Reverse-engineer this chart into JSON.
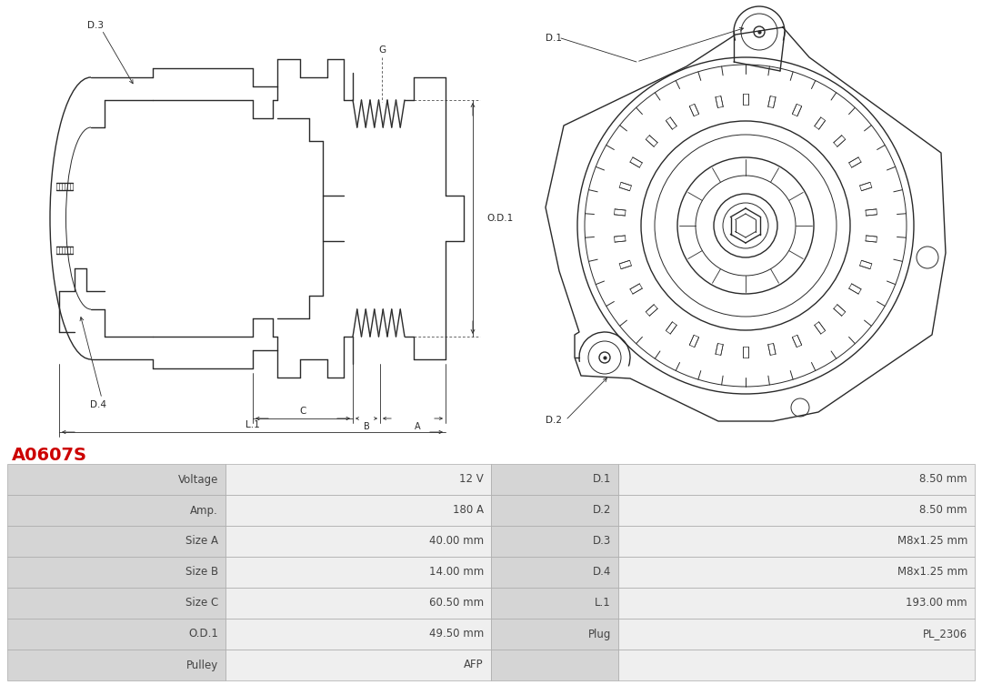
{
  "title": "A0607S",
  "title_color": "#cc0000",
  "bg_color": "#ffffff",
  "table_rows": [
    [
      "Voltage",
      "12 V",
      "D.1",
      "8.50 mm"
    ],
    [
      "Amp.",
      "180 A",
      "D.2",
      "8.50 mm"
    ],
    [
      "Size A",
      "40.00 mm",
      "D.3",
      "M8x1.25 mm"
    ],
    [
      "Size B",
      "14.00 mm",
      "D.4",
      "M8x1.25 mm"
    ],
    [
      "Size C",
      "60.50 mm",
      "L.1",
      "193.00 mm"
    ],
    [
      "O.D.1",
      "49.50 mm",
      "Plug",
      "PL_2306"
    ],
    [
      "Pulley",
      "AFP",
      "",
      ""
    ]
  ],
  "line_color": "#2a2a2a",
  "text_color": "#444444",
  "col_label_bg": "#d5d5d5",
  "col_value_bg": "#efefef",
  "col_dim_bg": "#d5d5d5",
  "col_dimval_bg": "#efefef",
  "table_border": "#aaaaaa",
  "title_fontsize": 14,
  "table_fontsize": 8.5
}
